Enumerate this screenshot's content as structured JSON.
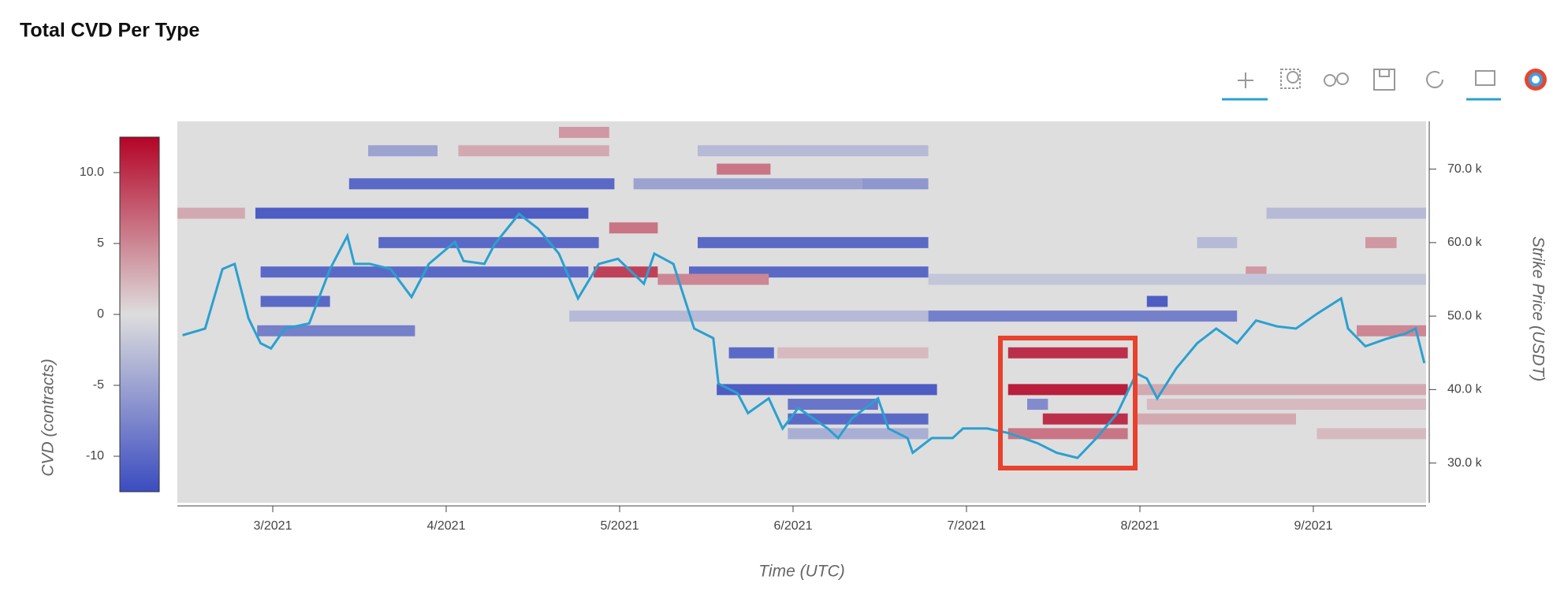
{
  "chart_data": {
    "type": "heatmap",
    "title": "Total CVD Per Type",
    "xlabel": "Time (UTC)",
    "ylabel": "CVD (contracts)",
    "y2label": "Strike Price (USDT)",
    "xlim": [
      2.45,
      9.65
    ],
    "xticks": [
      {
        "value": 3,
        "label": "3/2021"
      },
      {
        "value": 4,
        "label": "4/2021"
      },
      {
        "value": 5,
        "label": "5/2021"
      },
      {
        "value": 6,
        "label": "6/2021"
      },
      {
        "value": 7,
        "label": "7/2021"
      },
      {
        "value": 8,
        "label": "8/2021"
      },
      {
        "value": 9,
        "label": "9/2021"
      }
    ],
    "ylim": [
      -12.5,
      12.5
    ],
    "yticks": [
      -10,
      -5,
      0,
      5,
      {
        "value": 10,
        "label": "10.0"
      }
    ],
    "y2lim": [
      24600,
      76500
    ],
    "y2ticks": [
      {
        "value": 30000,
        "label": "30.0 k"
      },
      {
        "value": 40000,
        "label": "40.0 k"
      },
      {
        "value": 50000,
        "label": "50.0 k"
      },
      {
        "value": 60000,
        "label": "60.0 k"
      },
      {
        "value": 70000,
        "label": "70.0 k"
      }
    ],
    "colormap": [
      "#3b4cc0",
      "#dddddd",
      "#b40426"
    ],
    "cells": {
      "x_start": [
        4.65,
        3.55,
        4.07,
        5.45,
        5.56,
        3.44,
        5.08,
        6.4,
        2.45,
        2.9,
        8.73,
        4.94,
        3.61,
        5.45,
        8.33,
        9.3,
        2.93,
        4.85,
        5.4,
        8.61,
        5.22,
        6.78,
        2.93,
        8.04,
        4.71,
        6.78,
        2.91,
        9.25,
        5.63,
        5.91,
        7.24,
        5.56,
        7.24,
        7.98,
        5.97,
        7.35,
        8.04,
        5.97,
        7.44,
        7.98,
        5.97,
        7.24,
        9.02
      ],
      "x_end": [
        4.94,
        3.95,
        4.94,
        6.78,
        5.87,
        4.97,
        6.4,
        6.78,
        2.84,
        4.82,
        9.65,
        5.22,
        4.88,
        6.78,
        8.56,
        9.48,
        4.82,
        5.22,
        6.78,
        8.73,
        5.86,
        9.65,
        3.33,
        8.16,
        6.78,
        8.56,
        3.82,
        9.65,
        5.89,
        6.78,
        7.93,
        6.83,
        7.93,
        9.65,
        6.49,
        7.47,
        9.65,
        6.78,
        7.93,
        8.9,
        6.78,
        7.93,
        9.65
      ],
      "y": [
        75000,
        72500,
        72500,
        72500,
        70000,
        68000,
        68000,
        68000,
        64000,
        64000,
        64000,
        62000,
        60000,
        60000,
        60000,
        60000,
        56000,
        56000,
        56000,
        56000,
        55000,
        55000,
        52000,
        52000,
        50000,
        50000,
        48000,
        48000,
        45000,
        45000,
        45000,
        40000,
        40000,
        40000,
        38000,
        38000,
        38000,
        36000,
        36000,
        36000,
        34000,
        34000,
        34000
      ],
      "values": [
        4,
        -5,
        3,
        -3,
        6,
        -10,
        -5,
        -6,
        3,
        -11,
        -3,
        6,
        -10,
        -10,
        -3,
        4,
        -10,
        9,
        -10,
        4,
        5,
        -2,
        -10,
        -11,
        -3,
        -8,
        -8,
        5,
        -10,
        2,
        10,
        -11,
        11,
        3,
        -9,
        -7,
        2,
        -10,
        10,
        3,
        -4,
        6,
        2
      ]
    },
    "line": {
      "axis": "y2",
      "color": "#2aa0d0",
      "x": [
        2.48,
        2.61,
        2.71,
        2.78,
        2.86,
        2.93,
        2.99,
        3.07,
        3.21,
        3.33,
        3.43,
        3.47,
        3.56,
        3.68,
        3.8,
        3.9,
        4.05,
        4.1,
        4.22,
        4.28,
        4.42,
        4.53,
        4.65,
        4.76,
        4.88,
        4.99,
        5.14,
        5.2,
        5.31,
        5.43,
        5.54,
        5.57,
        5.68,
        5.74,
        5.86,
        5.94,
        6.03,
        6.2,
        6.26,
        6.34,
        6.49,
        6.55,
        6.66,
        6.69,
        6.8,
        6.92,
        6.98,
        7.12,
        7.24,
        7.41,
        7.52,
        7.64,
        7.75,
        7.87,
        7.98,
        8.04,
        8.1,
        8.21,
        8.33,
        8.44,
        8.56,
        8.67,
        8.79,
        8.9,
        9.02,
        9.16,
        9.2,
        9.3,
        9.42,
        9.53,
        9.59,
        9.64
      ],
      "values": [
        47400,
        48300,
        56400,
        57100,
        49700,
        46300,
        45600,
        48300,
        49000,
        56400,
        60900,
        57100,
        57100,
        56400,
        52600,
        57100,
        60100,
        57500,
        57100,
        59800,
        63900,
        61900,
        58500,
        52400,
        57100,
        57800,
        54400,
        58500,
        57100,
        48300,
        47000,
        40800,
        39500,
        36800,
        38800,
        34700,
        37500,
        34700,
        33400,
        36100,
        38800,
        34700,
        33400,
        31400,
        33400,
        33400,
        34700,
        34700,
        34100,
        32700,
        31400,
        30700,
        33400,
        36800,
        42200,
        41500,
        38800,
        42900,
        46300,
        48300,
        46300,
        49400,
        48600,
        48300,
        50300,
        52400,
        48300,
        45900,
        46900,
        47600,
        48300,
        43600
      ]
    }
  }
}
